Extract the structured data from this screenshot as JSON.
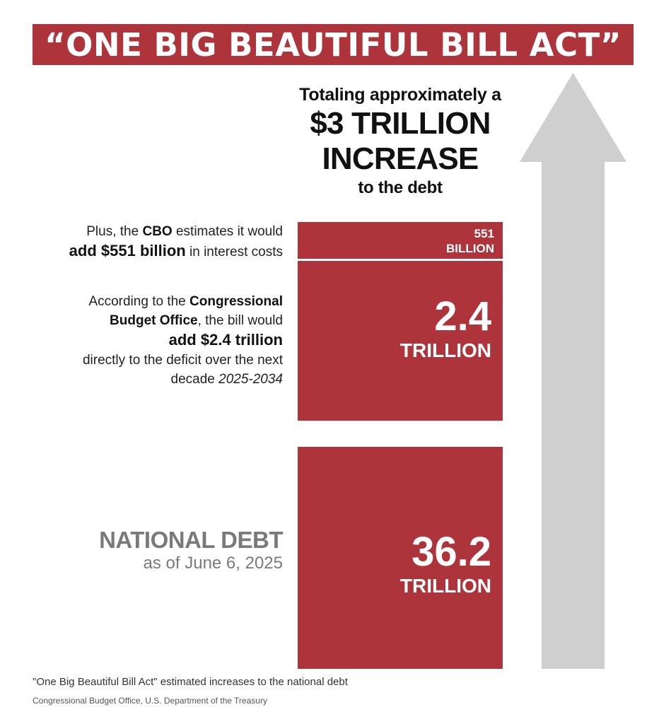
{
  "banner": {
    "title": "“ONE BIG BEAUTIFUL BILL ACT”"
  },
  "headline": {
    "line1": "Totaling approximately a",
    "line2": "$3 TRILLION",
    "line3": "INCREASE",
    "line4": "to the debt"
  },
  "notes": {
    "interest": {
      "pre": "Plus, the ",
      "agency": "CBO",
      "mid": " estimates it would",
      "strong": "add $551 billion",
      "post": " in interest costs"
    },
    "deficit": {
      "pre": "According to the ",
      "agency_a": "Congressional",
      "agency_b": "Budget Office",
      "mid": ", the bill would",
      "strong": "add $2.4 trillion",
      "line4": "directly to the deficit over the next",
      "line5_pre": "decade ",
      "years": "2025-2034"
    },
    "debt": {
      "title": "NATIONAL DEBT",
      "date": "as of June 6, 2025"
    }
  },
  "chart_data": {
    "type": "bar",
    "stacked": true,
    "categories": [
      "551 BILLION",
      "2.4 TRILLION",
      "36.2 TRILLION"
    ],
    "series": [
      {
        "name": "",
        "values": [
          0.551,
          2.4,
          36.2
        ]
      }
    ],
    "unit": "trillion USD",
    "labels": [
      {
        "value": "551",
        "unit": "BILLION"
      },
      {
        "value": "2.4",
        "unit": "TRILLION"
      },
      {
        "value": "36.2",
        "unit": "TRILLION"
      }
    ],
    "title": "“ONE BIG BEAUTIFUL BILL ACT”",
    "subtitle": "Totaling approximately a $3 TRILLION INCREASE to the debt",
    "xlabel": "",
    "ylabel": "",
    "grid": false,
    "legend": "none",
    "scale_broken": true
  },
  "footer": {
    "caption": "\"One Big Beautiful Bill Act\" estimated increases to the national debt",
    "source": "Congressional Budget Office, U.S. Department of the Treasury"
  },
  "colors": {
    "bar": "#ad343b",
    "arrow": "#cfcfcf",
    "muted_text": "#7a7a7a"
  },
  "icons": {
    "arrow": "up-arrow-icon"
  }
}
